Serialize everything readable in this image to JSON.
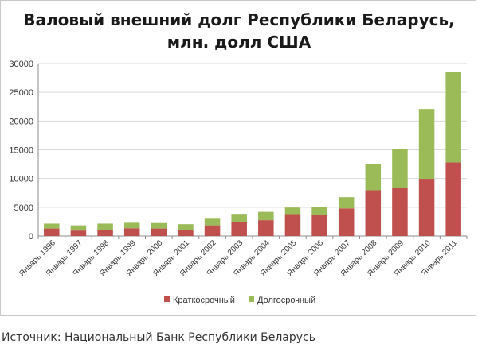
{
  "chart_data": {
    "type": "bar",
    "stacked": true,
    "title_lines": [
      "Валовый внешний долг Республики Беларусь,",
      "млн. долл США"
    ],
    "categories": [
      "Январь 1996",
      "Январь 1997",
      "Январь 1998",
      "Январь 1999",
      "Январь 2000",
      "Январь 2001",
      "Январь 2002",
      "Январь 2003",
      "Январь 2004",
      "Январь 2005",
      "Январь 2006",
      "Январь 2007",
      "Январь 2008",
      "Январь 2009",
      "Январь 2010",
      "Январь 2011"
    ],
    "series": [
      {
        "name": "Краткосрочный",
        "color": "#c0504d",
        "values": [
          1300,
          950,
          1100,
          1350,
          1300,
          1100,
          1850,
          2450,
          2750,
          3800,
          3700,
          4800,
          7950,
          8300,
          9950,
          12800
        ]
      },
      {
        "name": "Долгосрочный",
        "color": "#9bbb59",
        "values": [
          850,
          900,
          1050,
          950,
          950,
          950,
          1150,
          1400,
          1450,
          1150,
          1400,
          1950,
          4550,
          6900,
          12150,
          15700
        ]
      }
    ],
    "ylim": [
      0,
      30000
    ],
    "yticks": [
      0,
      5000,
      10000,
      15000,
      20000,
      25000,
      30000
    ],
    "grid": true,
    "legend_position": "bottom"
  },
  "source": "Источник: Национальный Банк Республики Беларусь"
}
